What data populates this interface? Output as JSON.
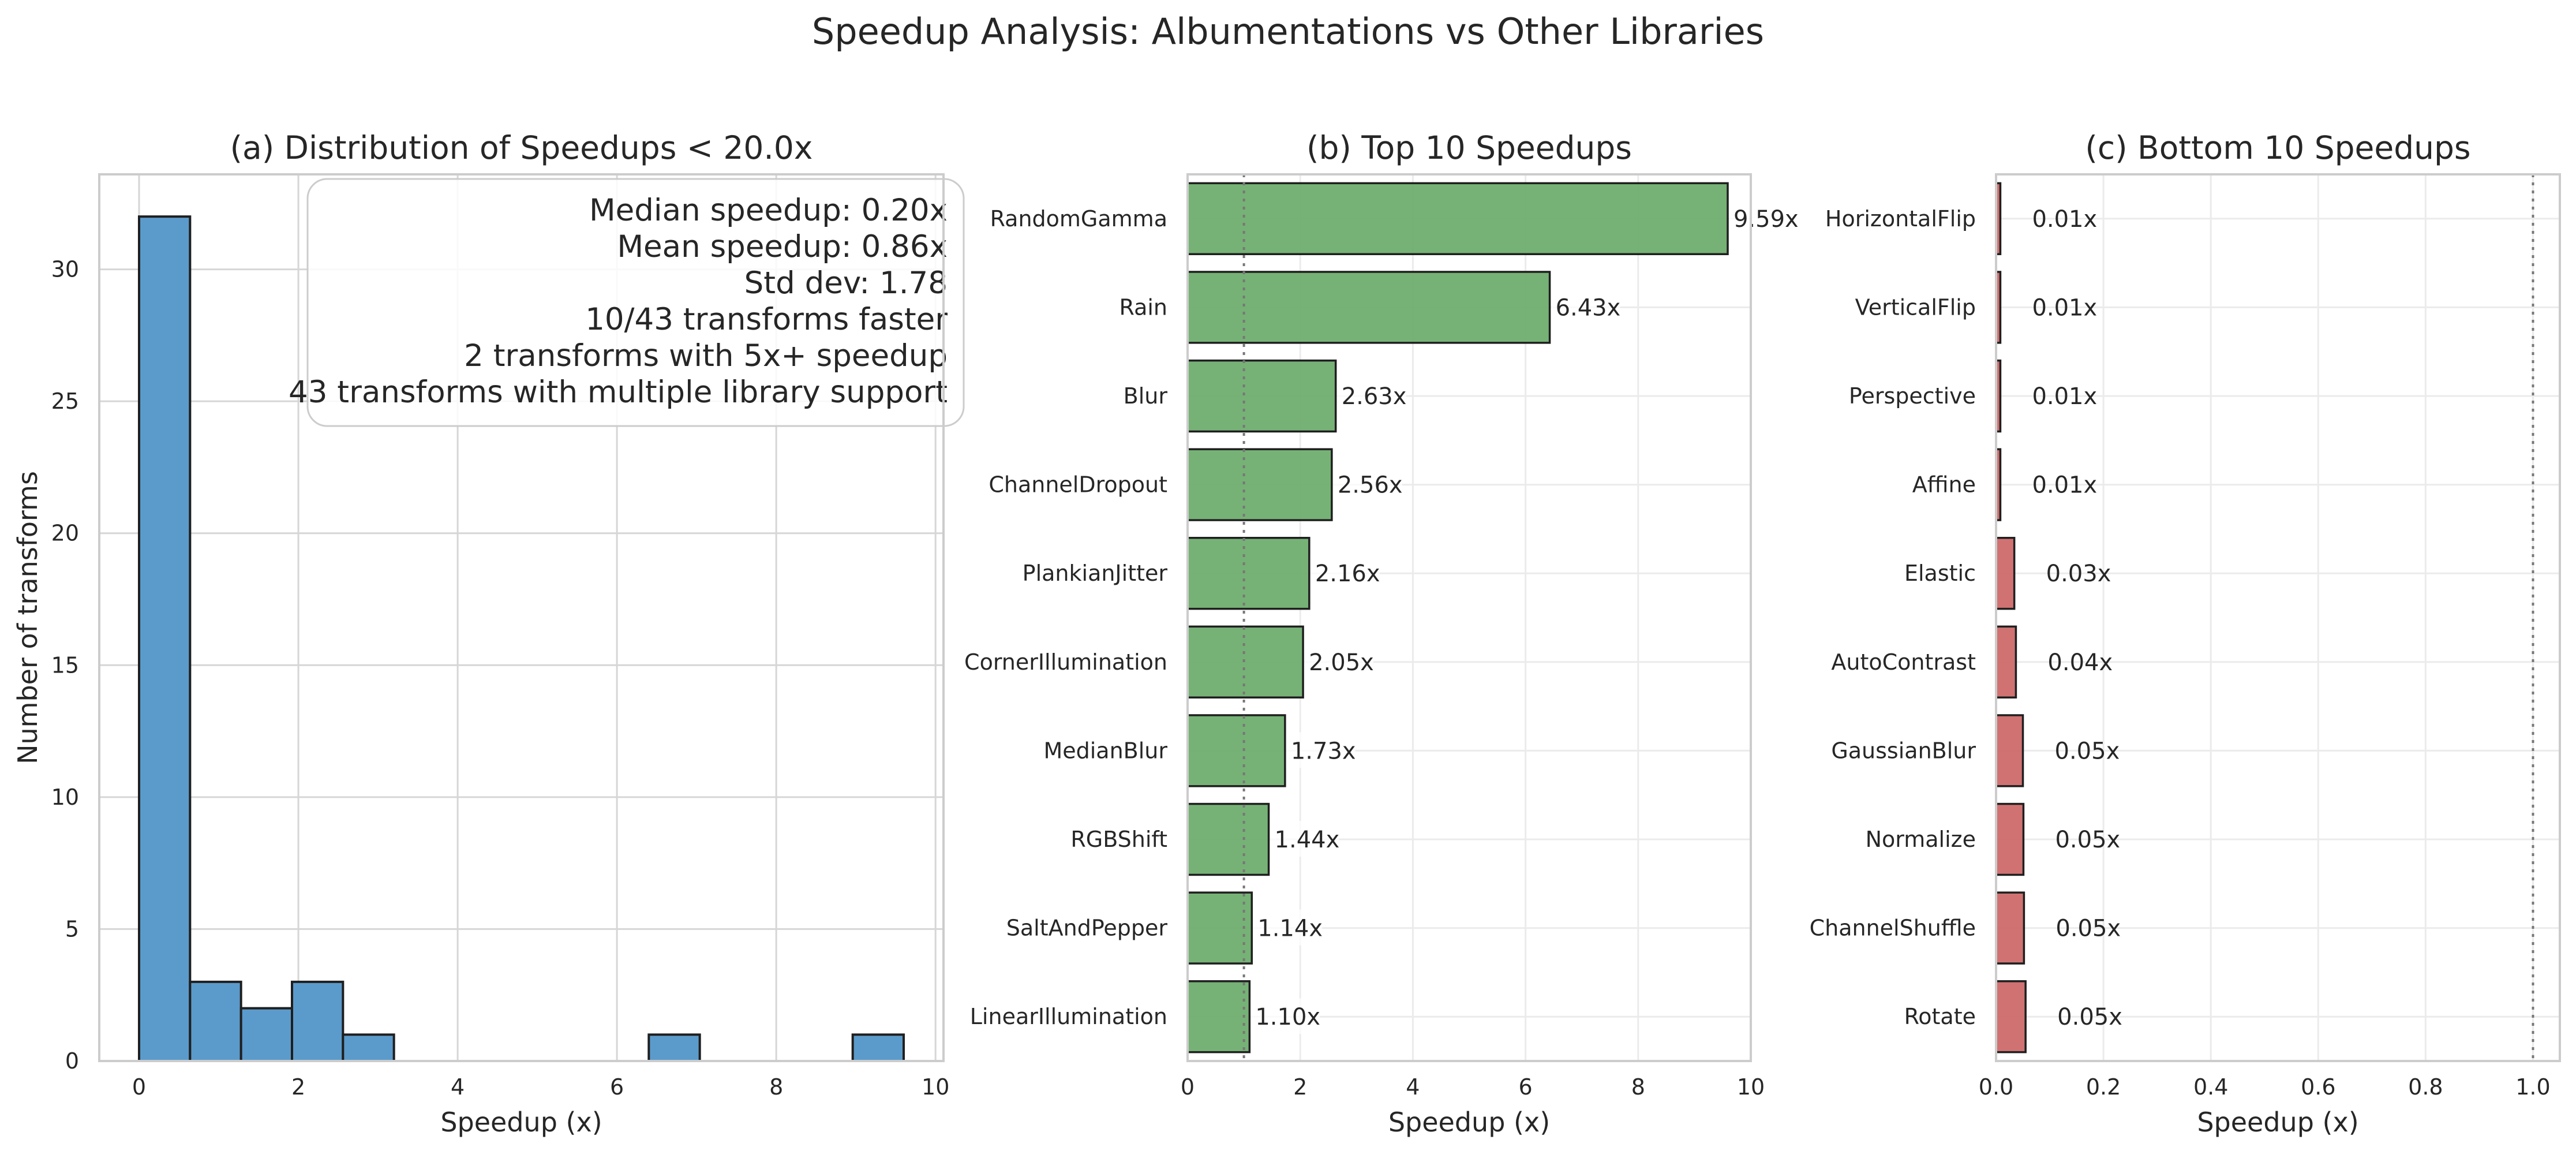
{
  "figure": {
    "suptitle": "Speedup Analysis: Albumentations vs Other Libraries"
  },
  "colors": {
    "hist_bar": "#5b9bcb",
    "top_bar": "#6aab6a",
    "bottom_bar": "#cd6666",
    "edge": "#1f1f1f",
    "grid": "#d6d6d6",
    "reference_line": "#777777"
  },
  "stats_box": {
    "lines": [
      "Median speedup: 0.20x",
      "Mean speedup: 0.86x",
      "Std dev: 1.78",
      "10/43 transforms faster",
      "2 transforms with 5x+ speedup",
      "43 transforms with multiple library support"
    ]
  },
  "chart_data": [
    {
      "id": "a",
      "type": "bar",
      "subtype": "histogram",
      "title": "(a) Distribution of Speedups < 20.0x",
      "xlabel": "Speedup (x)",
      "ylabel": "Number of transforms",
      "xlim": [
        -0.5,
        10.1
      ],
      "ylim": [
        0,
        33.6
      ],
      "xticks": [
        0,
        2,
        4,
        6,
        8,
        10
      ],
      "yticks": [
        0,
        5,
        10,
        15,
        20,
        25,
        30
      ],
      "bins": [
        {
          "start": 0.0,
          "end": 0.64,
          "count": 32
        },
        {
          "start": 0.64,
          "end": 1.28,
          "count": 3
        },
        {
          "start": 1.28,
          "end": 1.92,
          "count": 2
        },
        {
          "start": 1.92,
          "end": 2.56,
          "count": 3
        },
        {
          "start": 2.56,
          "end": 3.2,
          "count": 1
        },
        {
          "start": 6.4,
          "end": 7.04,
          "count": 1
        },
        {
          "start": 8.96,
          "end": 9.6,
          "count": 1
        }
      ],
      "grid": true,
      "annotation_box": "top-right"
    },
    {
      "id": "b",
      "type": "bar",
      "orientation": "horizontal",
      "title": "(b) Top 10 Speedups",
      "xlabel": "Speedup (x)",
      "xlim": [
        0,
        10
      ],
      "xticks": [
        0,
        2,
        4,
        6,
        8,
        10
      ],
      "reference_line": 1,
      "categories": [
        "RandomGamma",
        "Rain",
        "Blur",
        "ChannelDropout",
        "PlankianJitter",
        "CornerIllumination",
        "MedianBlur",
        "RGBShift",
        "SaltAndPepper",
        "LinearIllumination"
      ],
      "values": [
        9.59,
        6.43,
        2.63,
        2.56,
        2.16,
        2.05,
        1.73,
        1.44,
        1.14,
        1.1
      ],
      "labels": [
        "9.59x",
        "6.43x",
        "2.63x",
        "2.56x",
        "2.16x",
        "2.05x",
        "1.73x",
        "1.44x",
        "1.14x",
        "1.10x"
      ],
      "grid": true
    },
    {
      "id": "c",
      "type": "bar",
      "orientation": "horizontal",
      "title": "(c) Bottom 10 Speedups",
      "xlabel": "Speedup (x)",
      "xlim": [
        0,
        1.05
      ],
      "xticks": [
        0.0,
        0.2,
        0.4,
        0.6,
        0.8,
        1.0
      ],
      "xtick_labels": [
        "0.0",
        "0.2",
        "0.4",
        "0.6",
        "0.8",
        "1.0"
      ],
      "reference_line": 1,
      "categories": [
        "HorizontalFlip",
        "VerticalFlip",
        "Perspective",
        "Affine",
        "Elastic",
        "AutoContrast",
        "GaussianBlur",
        "Normalize",
        "ChannelShuffle",
        "Rotate"
      ],
      "values": [
        0.008,
        0.008,
        0.008,
        0.008,
        0.034,
        0.037,
        0.05,
        0.051,
        0.052,
        0.055
      ],
      "labels": [
        "0.01x",
        "0.01x",
        "0.01x",
        "0.01x",
        "0.03x",
        "0.04x",
        "0.05x",
        "0.05x",
        "0.05x",
        "0.05x"
      ],
      "grid": true
    }
  ]
}
